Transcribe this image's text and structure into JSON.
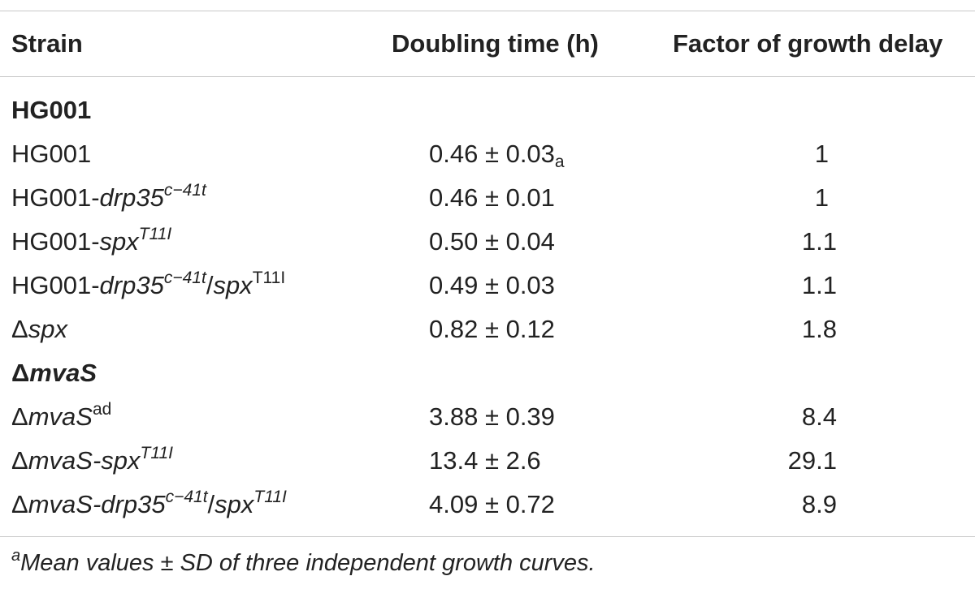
{
  "table": {
    "headers": {
      "strain": "Strain",
      "doubling_time": "Doubling time (h)",
      "growth_delay": "Factor of growth delay"
    },
    "group_hg001": "HG001",
    "group_mvas_prefix": "Δ",
    "group_mvas_name": "mvaS",
    "rows": [
      {
        "strain": "HG001",
        "doubling_time": "0.46 ± 0.03",
        "dt_sub": "a",
        "factor": "1"
      },
      {
        "strain_prefix": "HG001-",
        "strain_gene": "drp35",
        "strain_sup": "c−41t",
        "doubling_time": "0.46 ± 0.01",
        "factor": "1"
      },
      {
        "strain_prefix": "HG001-",
        "strain_gene": "spx",
        "strain_sup": "T11I",
        "doubling_time": "0.50 ± 0.04",
        "factor": "1.1"
      },
      {
        "strain_prefix": "HG001-",
        "strain_gene": "drp35",
        "strain_sup": "c−41t",
        "strain_sep": "/",
        "strain_gene2": "spx",
        "strain_sup2": "T11I",
        "doubling_time": "0.49 ± 0.03",
        "factor": "1.1"
      },
      {
        "strain_prefix": "Δ",
        "strain_gene": "spx",
        "doubling_time": "0.82 ± 0.12",
        "factor": "1.8"
      },
      {
        "strain_prefix": "Δ",
        "strain_gene": "mvaS",
        "strain_sup": "ad",
        "doubling_time": "3.88 ± 0.39",
        "factor": "8.4"
      },
      {
        "strain_prefix": "Δ",
        "strain_gene": "mvaS-spx",
        "strain_sup": "T11I",
        "doubling_time": "13.4 ± 2.6",
        "factor": "29.1"
      },
      {
        "strain_prefix": "Δ",
        "strain_gene": "mvaS-drp35",
        "strain_sup": "c−41t",
        "strain_sep": "/",
        "strain_gene2": "spx",
        "strain_sup2": "T11I",
        "doubling_time": "4.09 ± 0.72",
        "factor": "8.9"
      }
    ],
    "footnote_mark": "a",
    "footnote_text": "Mean values ± SD of three independent growth curves."
  }
}
